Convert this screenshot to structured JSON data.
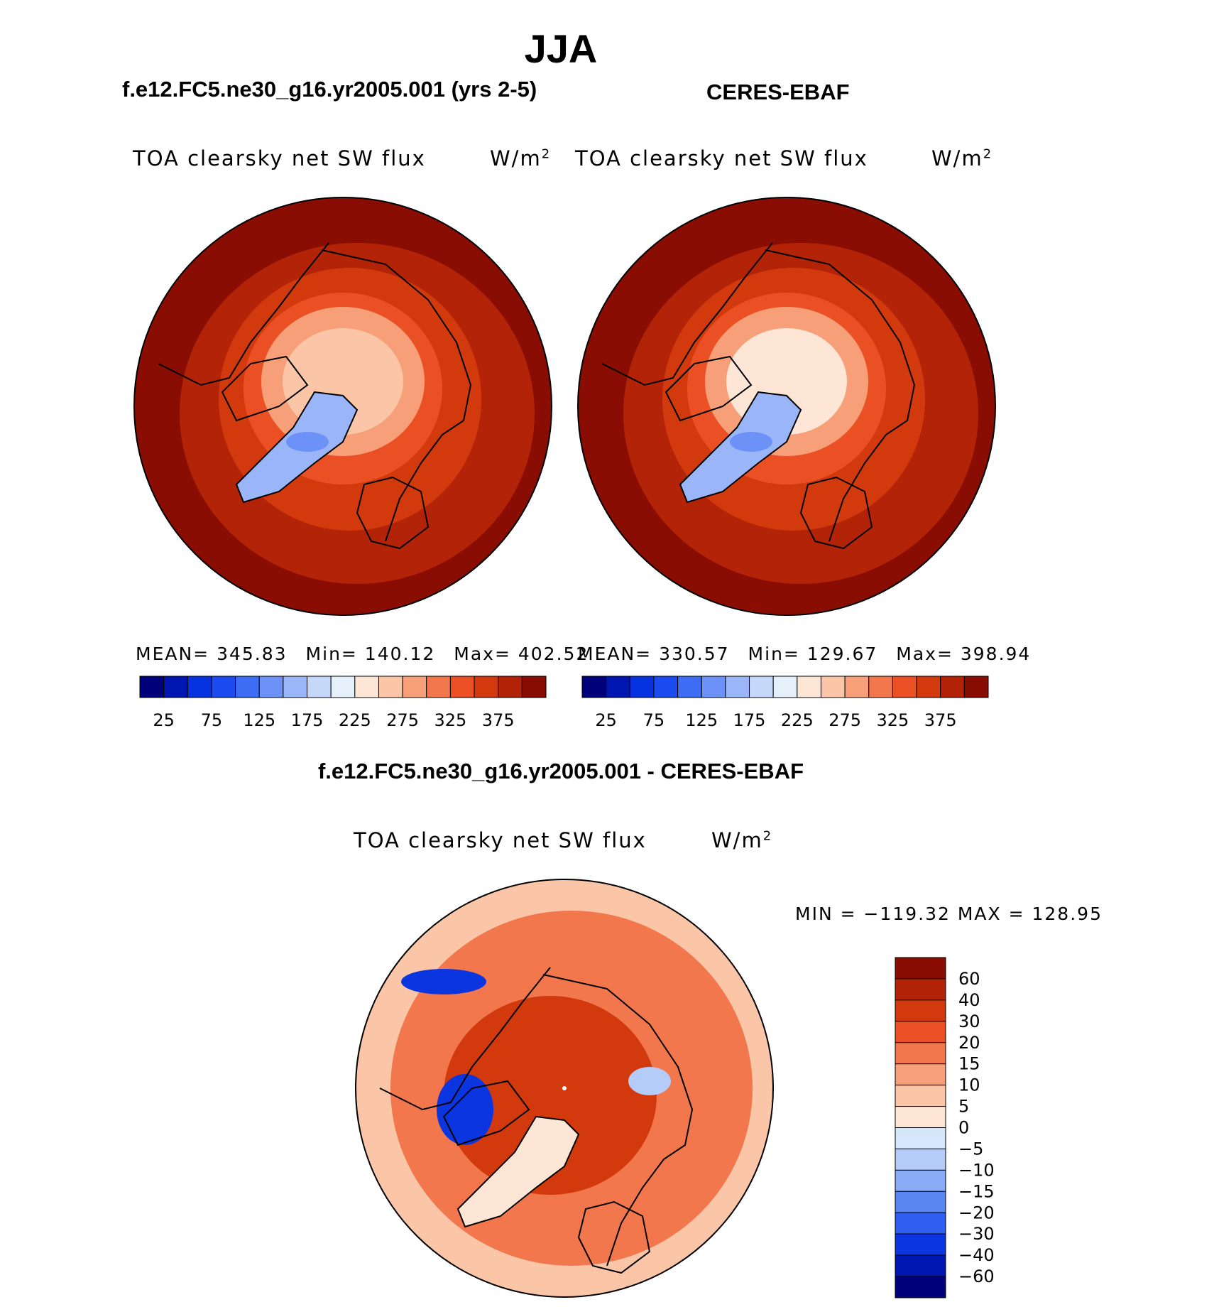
{
  "header": {
    "title": "JJA"
  },
  "panels": {
    "left": {
      "title": "f.e12.FC5.ne30_g16.yr2005.001 (yrs 2-5)",
      "variable": "TOA clearsky net SW flux",
      "units": "W/m",
      "units_exp": "2",
      "mean": "MEAN= 345.83",
      "min": "Min= 140.12",
      "max": "Max= 402.52"
    },
    "right": {
      "title": "CERES-EBAF",
      "variable": "TOA clearsky net SW flux",
      "units": "W/m",
      "units_exp": "2",
      "mean": "MEAN= 330.57",
      "min": "Min= 129.67",
      "max": "Max= 398.94"
    },
    "diff": {
      "title": "f.e12.FC5.ne30_g16.yr2005.001 - CERES-EBAF",
      "variable": "TOA clearsky net SW flux",
      "units": "W/m",
      "units_exp": "2",
      "minmax": "MIN = −119.32 MAX = 128.95"
    }
  },
  "colorbar_main": {
    "labels": [
      "25",
      "75",
      "125",
      "175",
      "225",
      "275",
      "325",
      "375"
    ],
    "colors": [
      "#00007a",
      "#0016b0",
      "#0732e0",
      "#1c4cf0",
      "#3d6cf5",
      "#6d92f7",
      "#9bb6f8",
      "#c6d8f9",
      "#e6f0fb",
      "#fde6d6",
      "#fbc6a8",
      "#f79f78",
      "#f2774d",
      "#ea5024",
      "#d23a0e",
      "#b22308",
      "#8a0d04"
    ]
  },
  "colorbar_diff": {
    "labels": [
      "60",
      "40",
      "30",
      "20",
      "15",
      "10",
      "5",
      "0",
      "−5",
      "−10",
      "−15",
      "−20",
      "−30",
      "−40",
      "−60"
    ],
    "colors": [
      "#8a0d04",
      "#b22308",
      "#d23a0e",
      "#ea5024",
      "#f2774d",
      "#f79f78",
      "#fbc6a8",
      "#fde6d6",
      "#d6e6fb",
      "#b5ccf9",
      "#8aacf6",
      "#5a86f3",
      "#2f5ef0",
      "#0b36df",
      "#0016b0",
      "#00007a"
    ]
  },
  "map_colors": {
    "outer": "#8a0d04",
    "band1": "#b22308",
    "band2": "#d23a0e",
    "band3": "#ea5024",
    "arctic_mid": "#f79f78",
    "arctic_core": "#fbc6a8",
    "arctic_core_obs": "#fde6d6",
    "greenland_ice": "#9bb6f8",
    "greenland_core": "#6d92f7",
    "diff_base": "#f2774d",
    "diff_outer": "#fbc6a8",
    "diff_arctic": "#d23a0e",
    "diff_blue": "#0b36df",
    "diff_lightblue": "#b5ccf9",
    "diff_white": "#fde6d6",
    "coast": "#000000"
  }
}
